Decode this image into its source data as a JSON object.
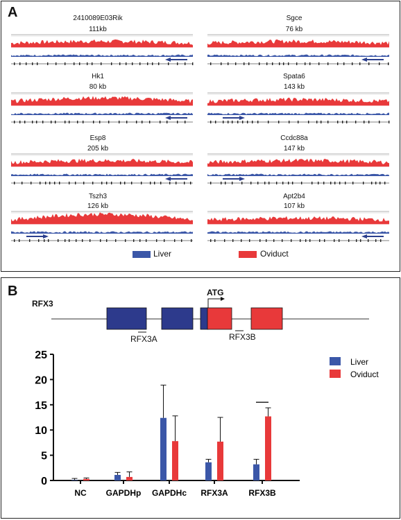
{
  "panel_a": {
    "label": "A",
    "tracks": [
      {
        "gene": "2410089E03Rik",
        "size": "111kb",
        "strand": "left"
      },
      {
        "gene": "Sgce",
        "size": "76 kb",
        "strand": "left"
      },
      {
        "gene": "Hk1",
        "size": "80 kb",
        "strand": "left"
      },
      {
        "gene": "Spata6",
        "size": "143 kb",
        "strand": "right"
      },
      {
        "gene": "Esp8",
        "size": "205 kb",
        "strand": "left"
      },
      {
        "gene": "Ccdc88a",
        "size": "147 kb",
        "strand": "right"
      },
      {
        "gene": "Tszh3",
        "size": "126 kb",
        "strand": "right"
      },
      {
        "gene": "Apt2b4",
        "size": "107 kb",
        "strand": "left"
      }
    ],
    "legend": [
      {
        "label": "Liver",
        "color": "#3b57a8"
      },
      {
        "label": "Oviduct",
        "color": "#e8393a"
      }
    ]
  },
  "panel_b": {
    "label": "B",
    "gene_label": "RFX3",
    "atg_label": "ATG",
    "amplicon_a": "RFX3A",
    "amplicon_b": "RFX3B"
  },
  "chart_data": {
    "type": "bar",
    "categories": [
      "NC",
      "GAPDHp",
      "GAPDHc",
      "RFX3A",
      "RFX3B"
    ],
    "series": [
      {
        "name": "Liver",
        "color": "#3b57a8",
        "values": [
          0.1,
          1.1,
          12.4,
          3.6,
          3.2
        ],
        "errors": [
          0.3,
          0.5,
          6.5,
          0.6,
          1.0
        ]
      },
      {
        "name": "Oviduct",
        "color": "#e8393a",
        "values": [
          0.3,
          0.7,
          7.8,
          7.7,
          12.7
        ],
        "errors": [
          0.2,
          1.0,
          5.0,
          4.8,
          1.7
        ]
      }
    ],
    "ylim": [
      0,
      25
    ],
    "yticks": [
      0,
      5,
      10,
      15,
      20,
      25
    ],
    "significance": "RFX3B",
    "legend_position": "top-right",
    "xlabel": "",
    "ylabel": ""
  }
}
